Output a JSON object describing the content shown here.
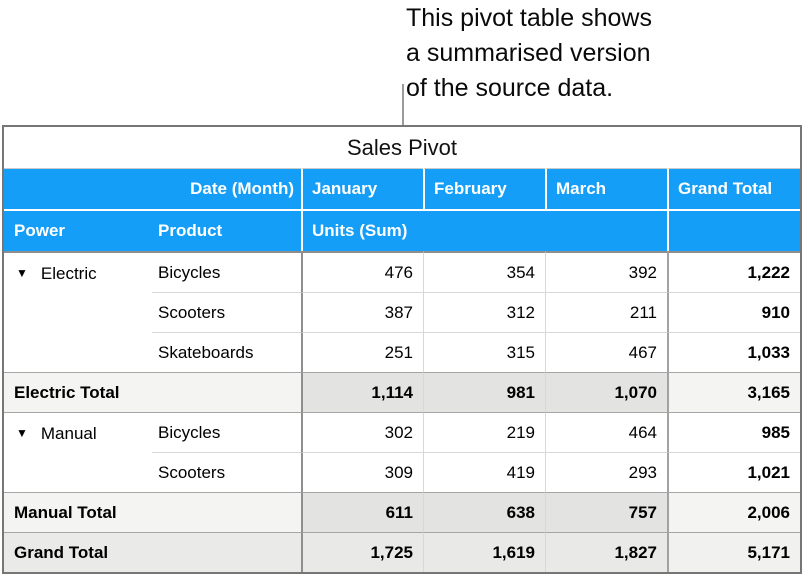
{
  "callout": {
    "lines": [
      "This pivot table shows",
      "a summarised version",
      "of the source data."
    ]
  },
  "colors": {
    "header_blue": "#149EF8",
    "total_row_label_bg": "#F4F4F2",
    "total_row_data_bg": "#E3E3E1",
    "grand_total_row_bg": "#EAEAE8"
  },
  "icons": {
    "disclosure_triangle": "▼"
  },
  "table": {
    "title": "Sales Pivot",
    "header1": {
      "date_month": "Date (Month)",
      "january": "January",
      "february": "February",
      "march": "March",
      "grand_total": "Grand Total"
    },
    "header2": {
      "power": "Power",
      "product": "Product",
      "units": "Units (Sum)"
    },
    "groups": [
      {
        "label": "Electric",
        "rows": [
          {
            "product": "Bicycles",
            "jan": "476",
            "feb": "354",
            "mar": "392",
            "total": "1,222"
          },
          {
            "product": "Scooters",
            "jan": "387",
            "feb": "312",
            "mar": "211",
            "total": "910"
          },
          {
            "product": "Skateboards",
            "jan": "251",
            "feb": "315",
            "mar": "467",
            "total": "1,033"
          }
        ],
        "total": {
          "label": "Electric Total",
          "jan": "1,114",
          "feb": "981",
          "mar": "1,070",
          "total": "3,165"
        }
      },
      {
        "label": "Manual",
        "rows": [
          {
            "product": "Bicycles",
            "jan": "302",
            "feb": "219",
            "mar": "464",
            "total": "985"
          },
          {
            "product": "Scooters",
            "jan": "309",
            "feb": "419",
            "mar": "293",
            "total": "1,021"
          }
        ],
        "total": {
          "label": "Manual Total",
          "jan": "611",
          "feb": "638",
          "mar": "757",
          "total": "2,006"
        }
      }
    ],
    "grand_total": {
      "label": "Grand Total",
      "jan": "1,725",
      "feb": "1,619",
      "mar": "1,827",
      "total": "5,171"
    }
  }
}
